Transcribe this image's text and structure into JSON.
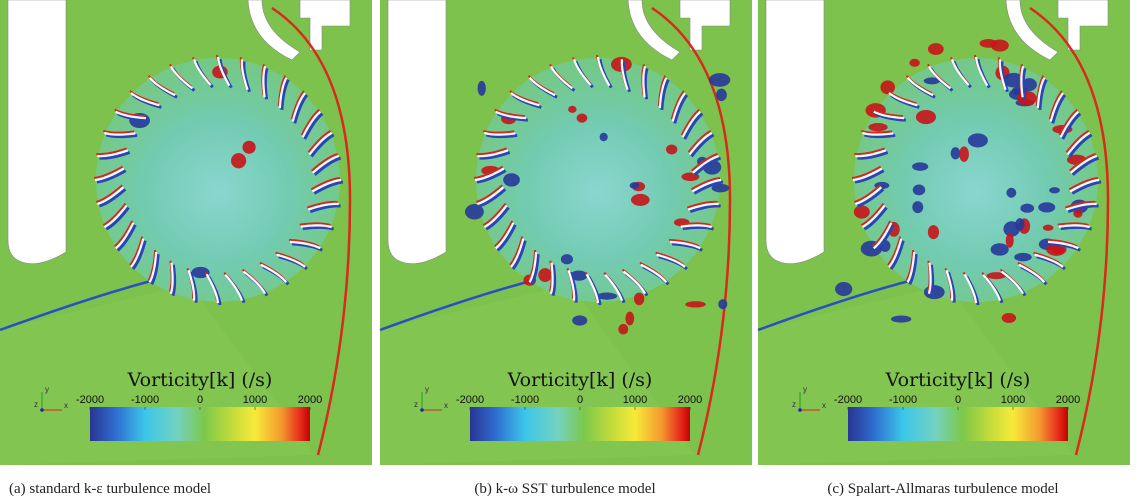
{
  "panels": [
    {
      "caption": "(a) standard k-ε turbulence model",
      "colorbar": {
        "title": "Vorticity[k] (/s)",
        "ticks": [
          -2000,
          -1000,
          0,
          1000,
          2000
        ]
      },
      "axes": [
        "y",
        "x",
        "z"
      ]
    },
    {
      "caption": "(b) k-ω SST turbulence model",
      "colorbar": {
        "title": "Vorticity[k] (/s)",
        "ticks": [
          -2000,
          -1000,
          0,
          1000,
          2000
        ]
      },
      "axes": [
        "y",
        "x",
        "z"
      ]
    },
    {
      "caption": "(c) Spalart-Allmaras turbulence model",
      "colorbar": {
        "title": "Vorticity[k] (/s)",
        "ticks": [
          -2000,
          -1000,
          0,
          1000,
          2000
        ]
      },
      "axes": [
        "y",
        "x",
        "z"
      ]
    }
  ]
}
